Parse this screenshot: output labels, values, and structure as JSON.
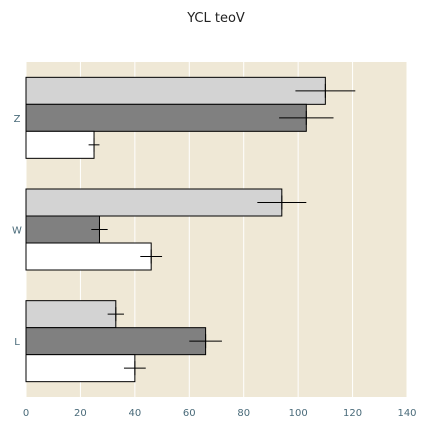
{
  "chart_data": {
    "type": "bar",
    "orientation": "horizontal",
    "title": "YCL teoV",
    "xlabel": "",
    "ylabel": "",
    "categories": [
      "Z",
      "W",
      "L"
    ],
    "xlim": [
      0,
      140
    ],
    "xticks": [
      0,
      20,
      40,
      60,
      80,
      100,
      120,
      140
    ],
    "grid": true,
    "legend": "none",
    "series": [
      {
        "color": "#d3d3d3",
        "values": [
          110,
          94,
          33
        ],
        "errors": [
          11,
          9,
          3
        ]
      },
      {
        "color": "#808080",
        "values": [
          103,
          27,
          66
        ],
        "errors": [
          10,
          3,
          6
        ]
      },
      {
        "color": "#ffffff",
        "values": [
          25,
          46,
          40
        ],
        "errors": [
          2,
          4,
          4
        ]
      }
    ],
    "background": "#efe8d6"
  }
}
